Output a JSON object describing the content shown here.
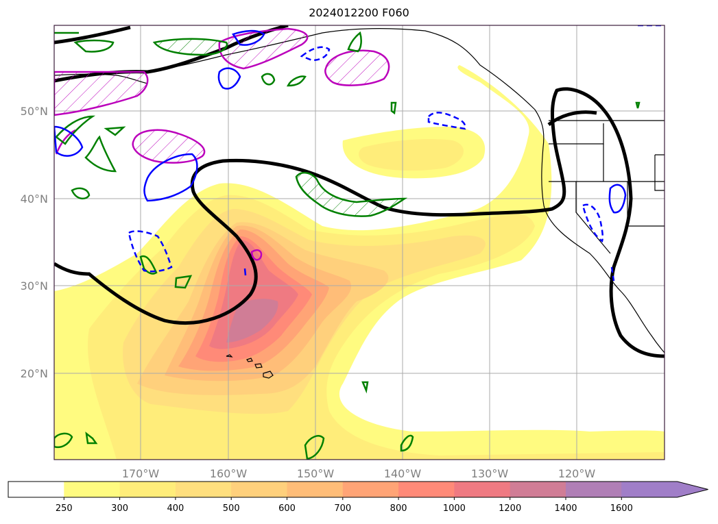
{
  "title": "2024012200 F060",
  "map": {
    "lat_labels": [
      "50°N",
      "40°N",
      "30°N",
      "20°N"
    ],
    "lat_values": [
      50,
      40,
      30,
      20
    ],
    "lon_labels": [
      "170°W",
      "160°W",
      "150°W",
      "140°W",
      "130°W",
      "120°W"
    ],
    "lon_values": [
      -170,
      -160,
      -150,
      -140,
      -130,
      -120
    ],
    "lon_range": [
      -180,
      -110
    ],
    "lat_range": [
      10,
      59
    ],
    "gridlines": true,
    "gridline_color": "#aaaaaa",
    "frame_color": "#3a1a3a"
  },
  "colorbar": {
    "ticks": [
      "250",
      "300",
      "400",
      "500",
      "600",
      "700",
      "800",
      "1000",
      "1200",
      "1400",
      "1600"
    ],
    "colors": [
      "#ffffff",
      "#fffb80",
      "#ffed7a",
      "#ffdf7e",
      "#ffd07c",
      "#ffbd78",
      "#ffa476",
      "#ff8a78",
      "#ef7a82",
      "#d07d96",
      "#b07fb6",
      "#a07ec8"
    ],
    "extend": "max"
  },
  "colors": {
    "contour_black": "#000000",
    "contour_green": "#008000",
    "contour_blue": "#0000ff",
    "contour_magenta": "#bb00bb"
  }
}
